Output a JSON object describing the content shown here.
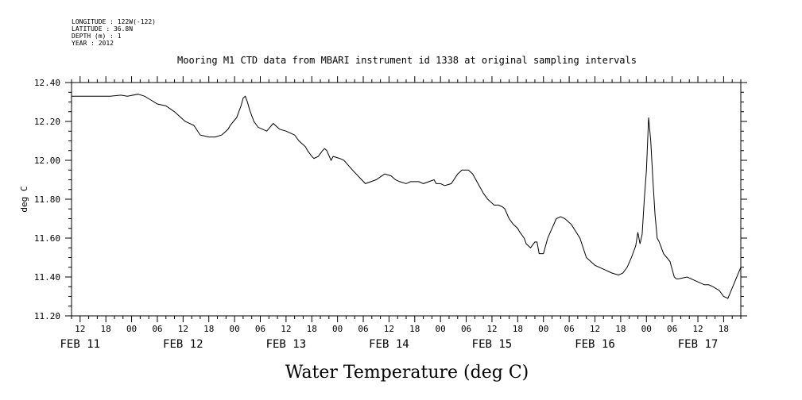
{
  "header": {
    "longitude": "LONGITUDE : 122W(-122)",
    "latitude": "LATITUDE : 36.8N",
    "depth": "DEPTH (m) : 1",
    "year": "YEAR : 2012"
  },
  "chart_data": {
    "type": "line",
    "title": "Mooring M1 CTD data from MBARI instrument id 1338 at original sampling intervals",
    "xlabel": "Water Temperature (deg C)",
    "ylabel": "deg C",
    "ylim": [
      11.2,
      12.4
    ],
    "yticks": [
      "11.20",
      "11.40",
      "11.60",
      "11.80",
      "12.00",
      "12.20",
      "12.40"
    ],
    "xlim_hours": [
      0,
      156
    ],
    "hour_tick_labels": [
      {
        "h": 2,
        "t": "12"
      },
      {
        "h": 8,
        "t": "18"
      },
      {
        "h": 14,
        "t": "00"
      },
      {
        "h": 20,
        "t": "06"
      },
      {
        "h": 26,
        "t": "12"
      },
      {
        "h": 32,
        "t": "18"
      },
      {
        "h": 38,
        "t": "00"
      },
      {
        "h": 44,
        "t": "06"
      },
      {
        "h": 50,
        "t": "12"
      },
      {
        "h": 56,
        "t": "18"
      },
      {
        "h": 62,
        "t": "00"
      },
      {
        "h": 68,
        "t": "06"
      },
      {
        "h": 74,
        "t": "12"
      },
      {
        "h": 80,
        "t": "18"
      },
      {
        "h": 86,
        "t": "00"
      },
      {
        "h": 92,
        "t": "06"
      },
      {
        "h": 98,
        "t": "12"
      },
      {
        "h": 104,
        "t": "18"
      },
      {
        "h": 110,
        "t": "00"
      },
      {
        "h": 116,
        "t": "06"
      },
      {
        "h": 122,
        "t": "12"
      },
      {
        "h": 128,
        "t": "18"
      },
      {
        "h": 134,
        "t": "00"
      },
      {
        "h": 140,
        "t": "06"
      },
      {
        "h": 146,
        "t": "12"
      },
      {
        "h": 152,
        "t": "18"
      }
    ],
    "date_labels": [
      {
        "h": 2,
        "t": "FEB 11"
      },
      {
        "h": 26,
        "t": "FEB 12"
      },
      {
        "h": 50,
        "t": "FEB 13"
      },
      {
        "h": 74,
        "t": "FEB 14"
      },
      {
        "h": 98,
        "t": "FEB 15"
      },
      {
        "h": 122,
        "t": "FEB 16"
      },
      {
        "h": 146,
        "t": "FEB 17"
      }
    ],
    "grid": false,
    "series": [
      {
        "color": "#000000",
        "x": [
          0.0,
          1.5,
          3.0,
          6.0,
          9.0,
          11.5,
          13.0,
          15.5,
          17.0,
          18.5,
          20.0,
          22.0,
          24.0,
          25.5,
          26.5,
          28.5,
          30.0,
          32.0,
          33.5,
          35.0,
          35.5,
          36.5,
          37.0,
          38.5,
          39.5,
          40.0,
          40.5,
          41.0,
          41.5,
          42.5,
          43.5,
          45.5,
          47.0,
          48.5,
          50.0,
          51.0,
          52.0,
          53.0,
          54.5,
          55.0,
          56.0,
          56.5,
          57.5,
          58.5,
          59.0,
          59.5,
          60.5,
          61.0,
          62.5,
          63.5,
          65.5,
          68.5,
          71.0,
          73.0,
          74.5,
          75.5,
          76.5,
          78.0,
          79.0,
          81.0,
          82.0,
          84.5,
          85.0,
          86.0,
          87.0,
          88.5,
          90.0,
          91.0,
          92.5,
          93.5,
          95.0,
          96.0,
          97.0,
          98.0,
          98.5,
          99.5,
          100.5,
          101.0,
          102.0,
          103.0,
          103.5,
          104.0,
          104.5,
          105.5,
          106.0,
          107.0,
          108.0,
          108.5,
          109.0,
          110.0,
          111.0,
          112.0,
          113.0,
          114.0,
          115.0,
          116.5,
          118.5,
          120.0,
          122.0,
          124.0,
          126.0,
          127.5,
          128.5,
          129.5,
          130.5,
          131.5,
          132.0,
          132.5,
          133.0,
          133.5,
          134.0,
          134.5,
          135.0,
          135.5,
          136.0,
          136.5,
          137.0,
          137.5,
          138.0,
          139.5,
          140.5,
          141.0,
          141.5,
          143.5,
          145.5,
          147.5,
          148.5,
          149.5,
          151.0,
          152.0,
          153.0,
          156.0
        ],
        "y": [
          12.33,
          12.33,
          12.33,
          12.33,
          12.33,
          12.335,
          12.33,
          12.34,
          12.33,
          12.31,
          12.29,
          12.28,
          12.25,
          12.22,
          12.2,
          12.18,
          12.13,
          12.12,
          12.12,
          12.13,
          12.14,
          12.16,
          12.18,
          12.22,
          12.28,
          12.32,
          12.33,
          12.3,
          12.26,
          12.2,
          12.17,
          12.15,
          12.19,
          12.16,
          12.15,
          12.14,
          12.13,
          12.1,
          12.07,
          12.05,
          12.02,
          12.01,
          12.02,
          12.05,
          12.06,
          12.05,
          12.0,
          12.02,
          12.01,
          12.0,
          11.95,
          11.88,
          11.9,
          11.93,
          11.92,
          11.9,
          11.89,
          11.88,
          11.89,
          11.89,
          11.88,
          11.9,
          11.88,
          11.88,
          11.87,
          11.88,
          11.93,
          11.95,
          11.95,
          11.93,
          11.87,
          11.83,
          11.8,
          11.78,
          11.77,
          11.77,
          11.76,
          11.75,
          11.7,
          11.67,
          11.66,
          11.65,
          11.63,
          11.6,
          11.57,
          11.55,
          11.58,
          11.58,
          11.52,
          11.52,
          11.6,
          11.65,
          11.7,
          11.71,
          11.7,
          11.67,
          11.6,
          11.5,
          11.46,
          11.44,
          11.42,
          11.41,
          11.42,
          11.45,
          11.5,
          11.56,
          11.63,
          11.57,
          11.62,
          11.8,
          11.95,
          12.22,
          12.1,
          11.9,
          11.72,
          11.6,
          11.58,
          11.55,
          11.52,
          11.48,
          11.4,
          11.39,
          11.39,
          11.4,
          11.38,
          11.36,
          11.36,
          11.35,
          11.33,
          11.3,
          11.29,
          11.45
        ]
      }
    ]
  }
}
